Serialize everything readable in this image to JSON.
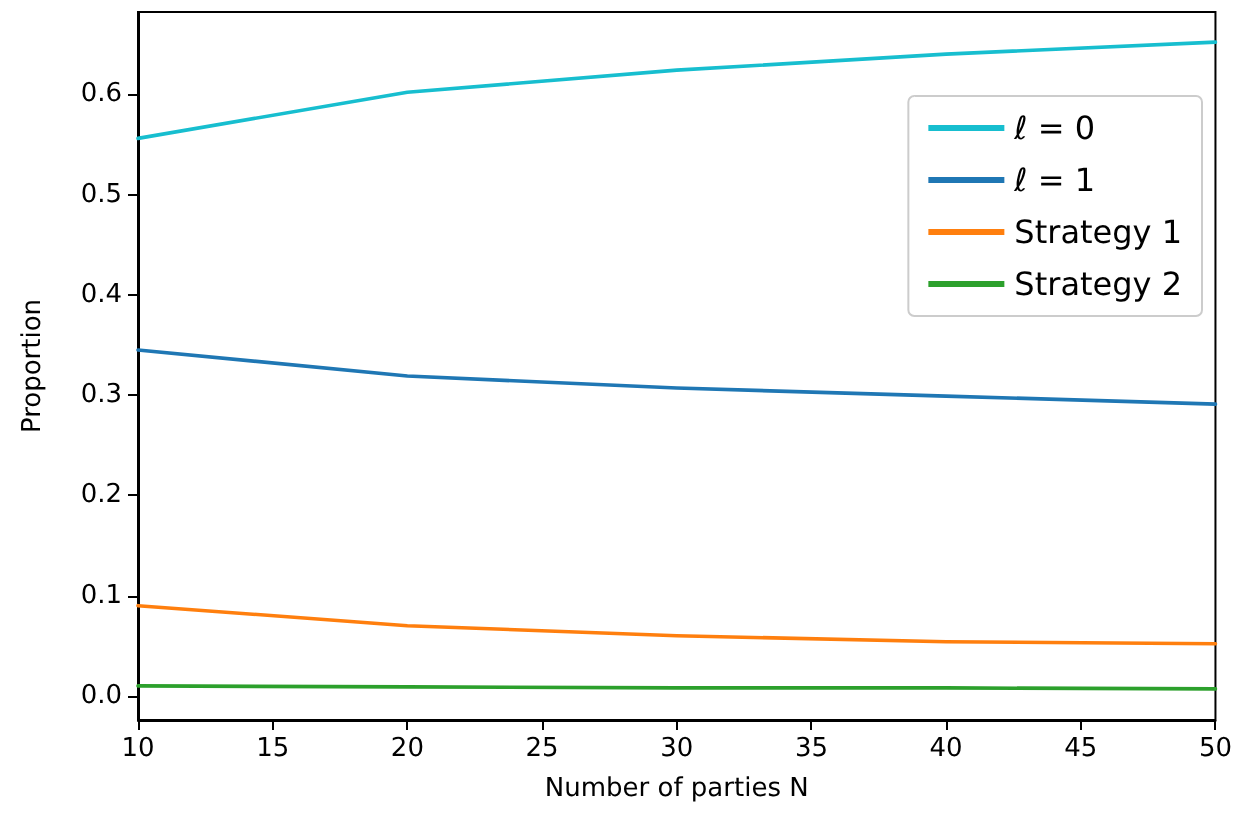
{
  "chart_data": {
    "type": "line",
    "xlabel": "Number of parties N",
    "ylabel": "Proportion",
    "x": [
      10,
      20,
      30,
      40,
      50
    ],
    "series": [
      {
        "name": "ℓ = 0",
        "color": "#17becf",
        "values": [
          0.556,
          0.602,
          0.624,
          0.64,
          0.652
        ]
      },
      {
        "name": "ℓ = 1",
        "color": "#1f77b4",
        "values": [
          0.345,
          0.319,
          0.307,
          0.299,
          0.291
        ]
      },
      {
        "name": "Strategy 1",
        "color": "#ff7f0e",
        "values": [
          0.09,
          0.07,
          0.06,
          0.054,
          0.052
        ]
      },
      {
        "name": "Strategy 2",
        "color": "#2ca02c",
        "values": [
          0.01,
          0.009,
          0.008,
          0.008,
          0.007
        ]
      }
    ],
    "xlim": [
      10,
      50
    ],
    "xticks": [
      10,
      15,
      20,
      25,
      30,
      35,
      40,
      45,
      50
    ],
    "ylim": [
      -0.024,
      0.682
    ],
    "yticks": [
      {
        "value": 0,
        "label": "0.0"
      },
      0.1,
      0.2,
      0.3,
      0.4,
      0.5,
      0.6
    ],
    "legend": "top right",
    "marker": "none",
    "line_style": "solid"
  }
}
